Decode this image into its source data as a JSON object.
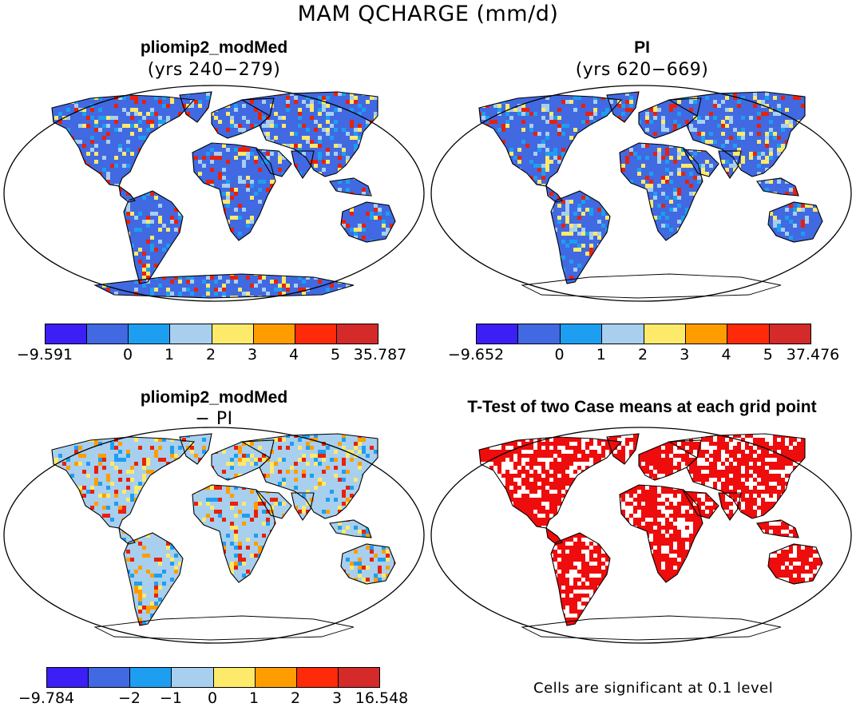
{
  "title": "MAM QCHARGE (mm/d)",
  "panels": [
    {
      "title": "pliomip2_modMed",
      "subtitle": "(yrs 240−279)",
      "fill": "#4169e1",
      "ant": true,
      "accents": [
        "#e8200c",
        "#a8cfee",
        "#1e9ef0",
        "#fdea6a"
      ]
    },
    {
      "title": "PI",
      "subtitle": "(yrs 620−669)",
      "fill": "#4169e1",
      "ant": false,
      "accents": [
        "#e8200c",
        "#a8cfee",
        "#1e9ef0",
        "#fdea6a"
      ]
    },
    {
      "title": "pliomip2_modMed",
      "subtitle": "− PI",
      "fill": "#a8cfee",
      "ant": false,
      "accents": [
        "#fdea6a",
        "#ff9d00",
        "#e8200c",
        "#1e9ef0"
      ]
    },
    {
      "title": "T-Test of two Case means at each grid point",
      "subtitle": "",
      "fill": "#ee0c0c",
      "ant": false,
      "accents": [
        "#ffffff"
      ]
    }
  ],
  "colorbars": [
    {
      "colors": [
        "#3b1ff5",
        "#4169e1",
        "#1e9ef0",
        "#a8cfee",
        "#fdea6a",
        "#ff9d00",
        "#ff2a0a",
        "#d42a2a"
      ],
      "labels": [
        "−9.591",
        "0",
        "1",
        "2",
        "3",
        "4",
        "5",
        "35.787"
      ]
    },
    {
      "colors": [
        "#3b1ff5",
        "#4169e1",
        "#1e9ef0",
        "#a8cfee",
        "#fdea6a",
        "#ff9d00",
        "#ff2a0a",
        "#d42a2a"
      ],
      "labels": [
        "−9.652",
        "0",
        "1",
        "2",
        "3",
        "4",
        "5",
        "37.476"
      ]
    },
    {
      "colors": [
        "#3b1ff5",
        "#4169e1",
        "#1e9ef0",
        "#a8cfee",
        "#fdea6a",
        "#ff9d00",
        "#ff2a0a",
        "#d42a2a"
      ],
      "labels": [
        "−9.784",
        "−2",
        "−1",
        "0",
        "1",
        "2",
        "3",
        "16.548"
      ]
    }
  ],
  "note": "Cells are significant at 0.1 level"
}
